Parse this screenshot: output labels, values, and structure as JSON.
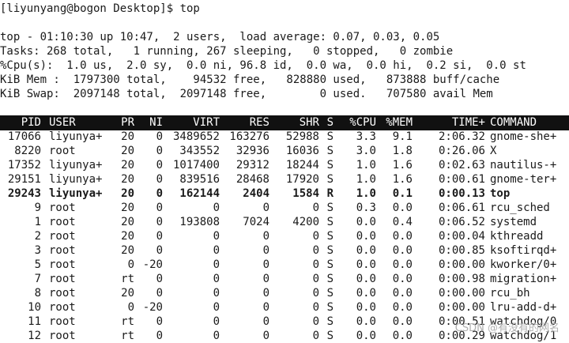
{
  "prompt": {
    "text": "[liyunyang@bogon Desktop]$ top"
  },
  "summary": {
    "uptime": "top - 01:10:30 up 10:47,  2 users,  load average: 0.07, 0.03, 0.05",
    "tasks": "Tasks: 268 total,   1 running, 267 sleeping,   0 stopped,   0 zombie",
    "cpu": "%Cpu(s):  1.0 us,  2.0 sy,  0.0 ni, 96.8 id,  0.0 wa,  0.0 hi,  0.2 si,  0.0 st",
    "mem": "KiB Mem :  1797300 total,    94532 free,   828880 used,   873888 buff/cache",
    "swap": "KiB Swap:  2097148 total,  2097148 free,        0 used.   707580 avail Mem"
  },
  "columns": [
    "PID",
    "USER",
    "PR",
    "NI",
    "VIRT",
    "RES",
    "SHR",
    "S",
    "%CPU",
    "%MEM",
    "TIME+",
    "COMMAND"
  ],
  "processes": [
    [
      "17066",
      "liyunya+",
      "20",
      "0",
      "3489652",
      "163276",
      "52988",
      "S",
      "3.3",
      "9.1",
      "2:06.32",
      "gnome-she+"
    ],
    [
      "8220",
      "root",
      "20",
      "0",
      "343552",
      "32936",
      "16036",
      "S",
      "3.0",
      "1.8",
      "0:26.06",
      "X"
    ],
    [
      "17352",
      "liyunya+",
      "20",
      "0",
      "1017400",
      "29312",
      "18244",
      "S",
      "1.0",
      "1.6",
      "0:02.63",
      "nautilus-+"
    ],
    [
      "29151",
      "liyunya+",
      "20",
      "0",
      "839516",
      "28468",
      "17920",
      "S",
      "1.0",
      "1.6",
      "0:00.61",
      "gnome-ter+"
    ],
    [
      "29243",
      "liyunya+",
      "20",
      "0",
      "162144",
      "2404",
      "1584",
      "R",
      "1.0",
      "0.1",
      "0:00.13",
      "top"
    ],
    [
      "9",
      "root",
      "20",
      "0",
      "0",
      "0",
      "0",
      "S",
      "0.3",
      "0.0",
      "0:06.61",
      "rcu_sched"
    ],
    [
      "1",
      "root",
      "20",
      "0",
      "193808",
      "7024",
      "4200",
      "S",
      "0.0",
      "0.4",
      "0:06.52",
      "systemd"
    ],
    [
      "2",
      "root",
      "20",
      "0",
      "0",
      "0",
      "0",
      "S",
      "0.0",
      "0.0",
      "0:00.04",
      "kthreadd"
    ],
    [
      "3",
      "root",
      "20",
      "0",
      "0",
      "0",
      "0",
      "S",
      "0.0",
      "0.0",
      "0:00.85",
      "ksoftirqd+"
    ],
    [
      "5",
      "root",
      "0",
      "-20",
      "0",
      "0",
      "0",
      "S",
      "0.0",
      "0.0",
      "0:00.00",
      "kworker/0+"
    ],
    [
      "7",
      "root",
      "rt",
      "0",
      "0",
      "0",
      "0",
      "S",
      "0.0",
      "0.0",
      "0:00.98",
      "migration+"
    ],
    [
      "8",
      "root",
      "20",
      "0",
      "0",
      "0",
      "0",
      "S",
      "0.0",
      "0.0",
      "0:00.00",
      "rcu_bh"
    ],
    [
      "10",
      "root",
      "0",
      "-20",
      "0",
      "0",
      "0",
      "S",
      "0.0",
      "0.0",
      "0:00.00",
      "lru-add-d+"
    ],
    [
      "11",
      "root",
      "rt",
      "0",
      "0",
      "0",
      "0",
      "S",
      "0.0",
      "0.0",
      "0:00.51",
      "watchdog/0"
    ],
    [
      "12",
      "root",
      "rt",
      "0",
      "0",
      "0",
      "0",
      "S",
      "0.0",
      "0.0",
      "0:00.29",
      "watchdog/1"
    ]
  ],
  "highlighted_row": 4,
  "watermark": "CSDN @有没有的网名"
}
